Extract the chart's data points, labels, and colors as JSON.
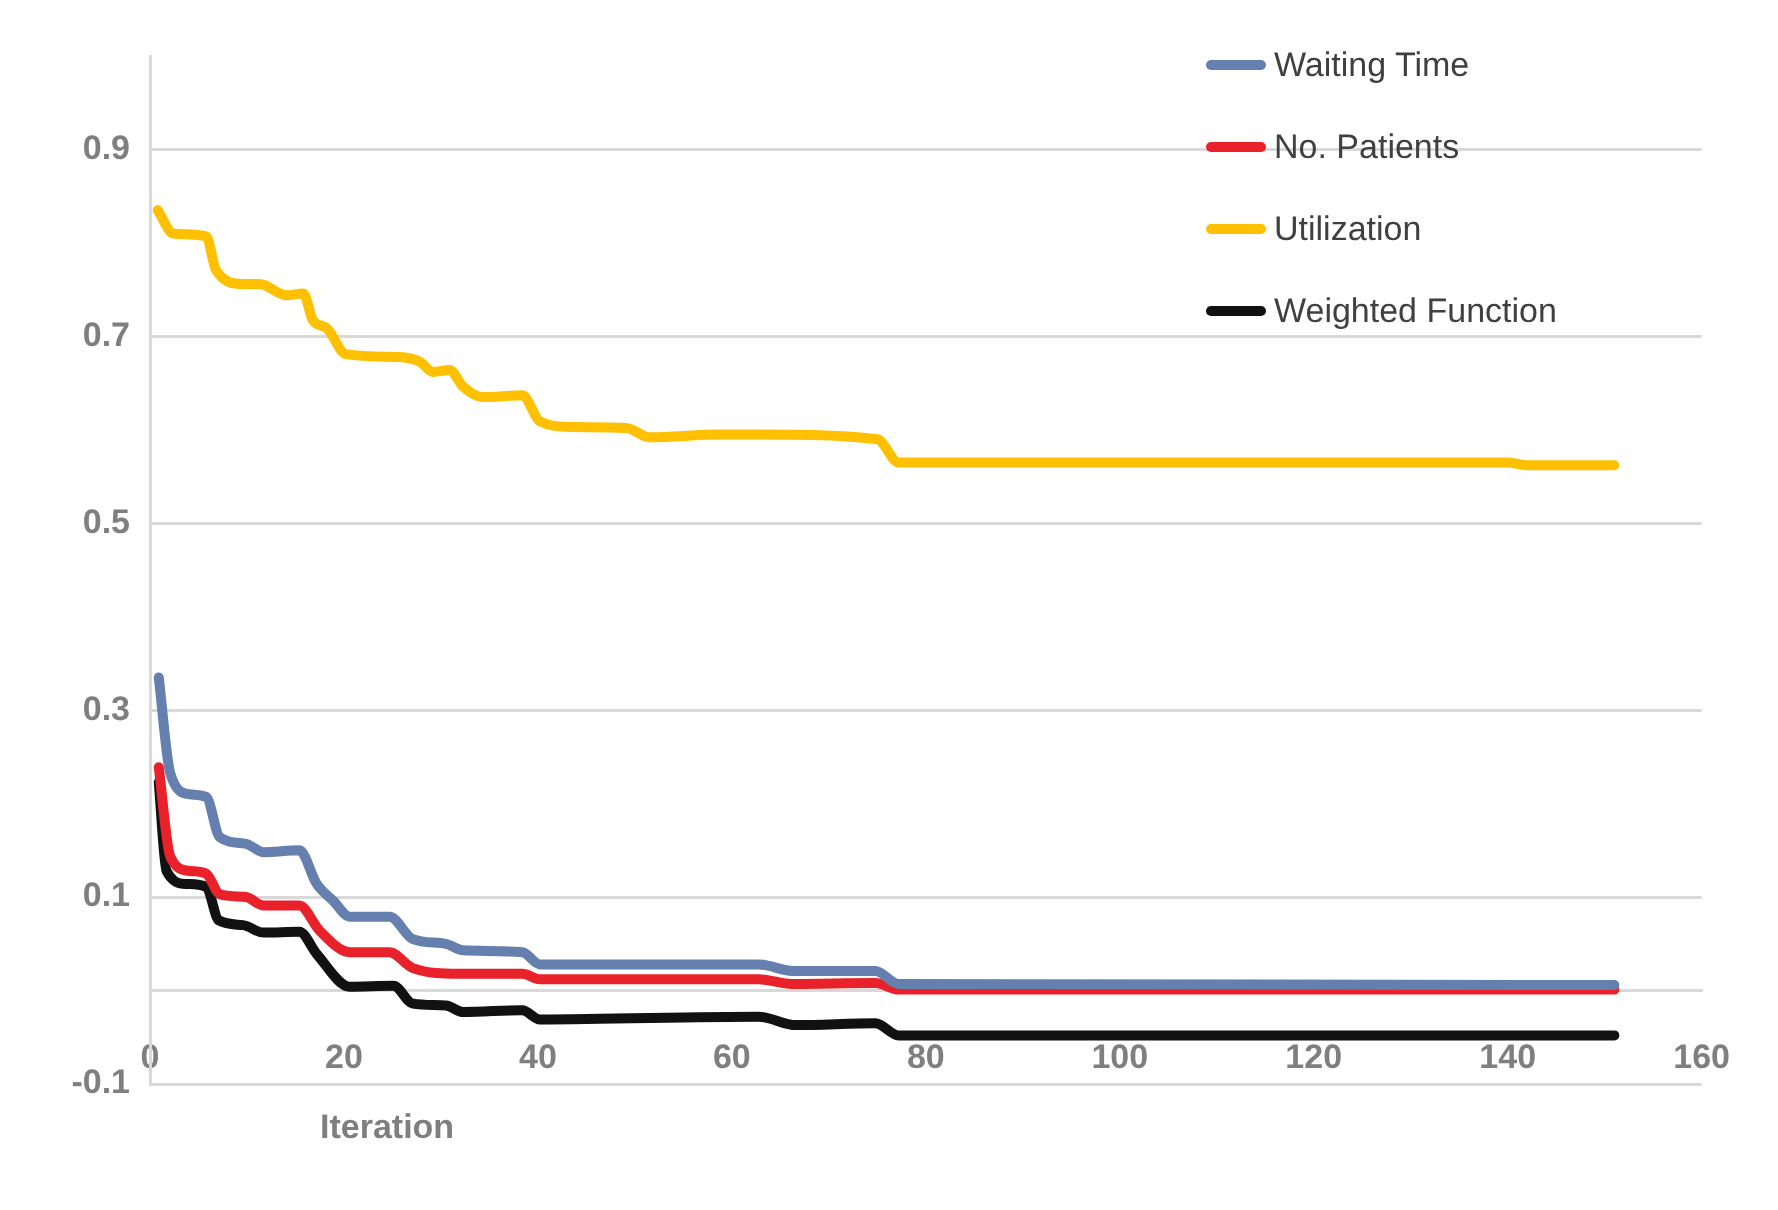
{
  "chart_data": {
    "type": "line",
    "xlabel": "Iteration",
    "xlim": [
      0,
      160
    ],
    "xticks": [
      0,
      20,
      40,
      60,
      80,
      100,
      120,
      140,
      160
    ],
    "ylim": [
      -0.1,
      1.0
    ],
    "yticks": [
      0.9,
      0.7,
      0.5,
      0.3,
      0.1,
      {
        "value": 0,
        "label": null
      },
      -0.1
    ],
    "grid": "y",
    "legend": "top right",
    "marker": "none",
    "line_style": "solid",
    "series": [
      {
        "name": "Waiting Time",
        "color": "#6580ae",
        "x": [
          0.9,
          2.1,
          4.1,
          5.8,
          7.2,
          9.9,
          11.7,
          15.4,
          17.2,
          18.9,
          20.6,
          24.7,
          27.1,
          30.5,
          32.3,
          38.4,
          40.2,
          62.8,
          66.2,
          74.8,
          77.2,
          151
        ],
        "values": [
          0.335,
          0.232,
          0.21,
          0.207,
          0.164,
          0.157,
          0.148,
          0.15,
          0.114,
          0.096,
          0.079,
          0.079,
          0.055,
          0.05,
          0.043,
          0.041,
          0.028,
          0.028,
          0.021,
          0.021,
          0.007,
          0.006
        ]
      },
      {
        "name": "No. Patients",
        "color": "#e8212a",
        "x": [
          0.9,
          2.1,
          4.1,
          5.8,
          7.2,
          9.9,
          11.7,
          15.4,
          17.5,
          20.6,
          24.7,
          27.1,
          31.9,
          38.4,
          40.2,
          62.8,
          66.2,
          74.8,
          77.2,
          151
        ],
        "values": [
          0.239,
          0.143,
          0.128,
          0.125,
          0.103,
          0.1,
          0.091,
          0.091,
          0.064,
          0.041,
          0.041,
          0.024,
          0.018,
          0.018,
          0.012,
          0.012,
          0.007,
          0.008,
          0.001,
          0.001
        ]
      },
      {
        "name": "Utilization",
        "color": "#ffc000",
        "x": [
          0.8,
          2.4,
          5.8,
          6.8,
          9.6,
          11.3,
          14.1,
          15.8,
          16.8,
          18.2,
          20.2,
          25.7,
          27.8,
          29.2,
          30.9,
          32.3,
          34.3,
          38.4,
          40.2,
          43.6,
          49.1,
          51.5,
          58.7,
          62,
          75,
          77.2,
          120,
          140,
          142,
          151
        ],
        "values": [
          0.835,
          0.81,
          0.807,
          0.771,
          0.756,
          0.756,
          0.744,
          0.746,
          0.717,
          0.709,
          0.681,
          0.678,
          0.673,
          0.662,
          0.664,
          0.646,
          0.635,
          0.637,
          0.609,
          0.603,
          0.602,
          0.592,
          0.595,
          0.595,
          0.59,
          0.565,
          0.565,
          0.565,
          0.562,
          0.562
        ]
      },
      {
        "name": "Weighted Function",
        "color": "#111111",
        "x": [
          0.9,
          1.7,
          3.8,
          5.8,
          7.1,
          9.6,
          11.7,
          15.4,
          17.2,
          20.6,
          25.1,
          27.1,
          30.5,
          32.3,
          38.4,
          40.2,
          62.8,
          66.6,
          74.8,
          77.2,
          151
        ],
        "values": [
          0.223,
          0.128,
          0.114,
          0.111,
          0.075,
          0.07,
          0.062,
          0.063,
          0.039,
          0.004,
          0.005,
          -0.014,
          -0.016,
          -0.023,
          -0.021,
          -0.031,
          -0.028,
          -0.037,
          -0.035,
          -0.048,
          -0.048
        ]
      }
    ]
  }
}
